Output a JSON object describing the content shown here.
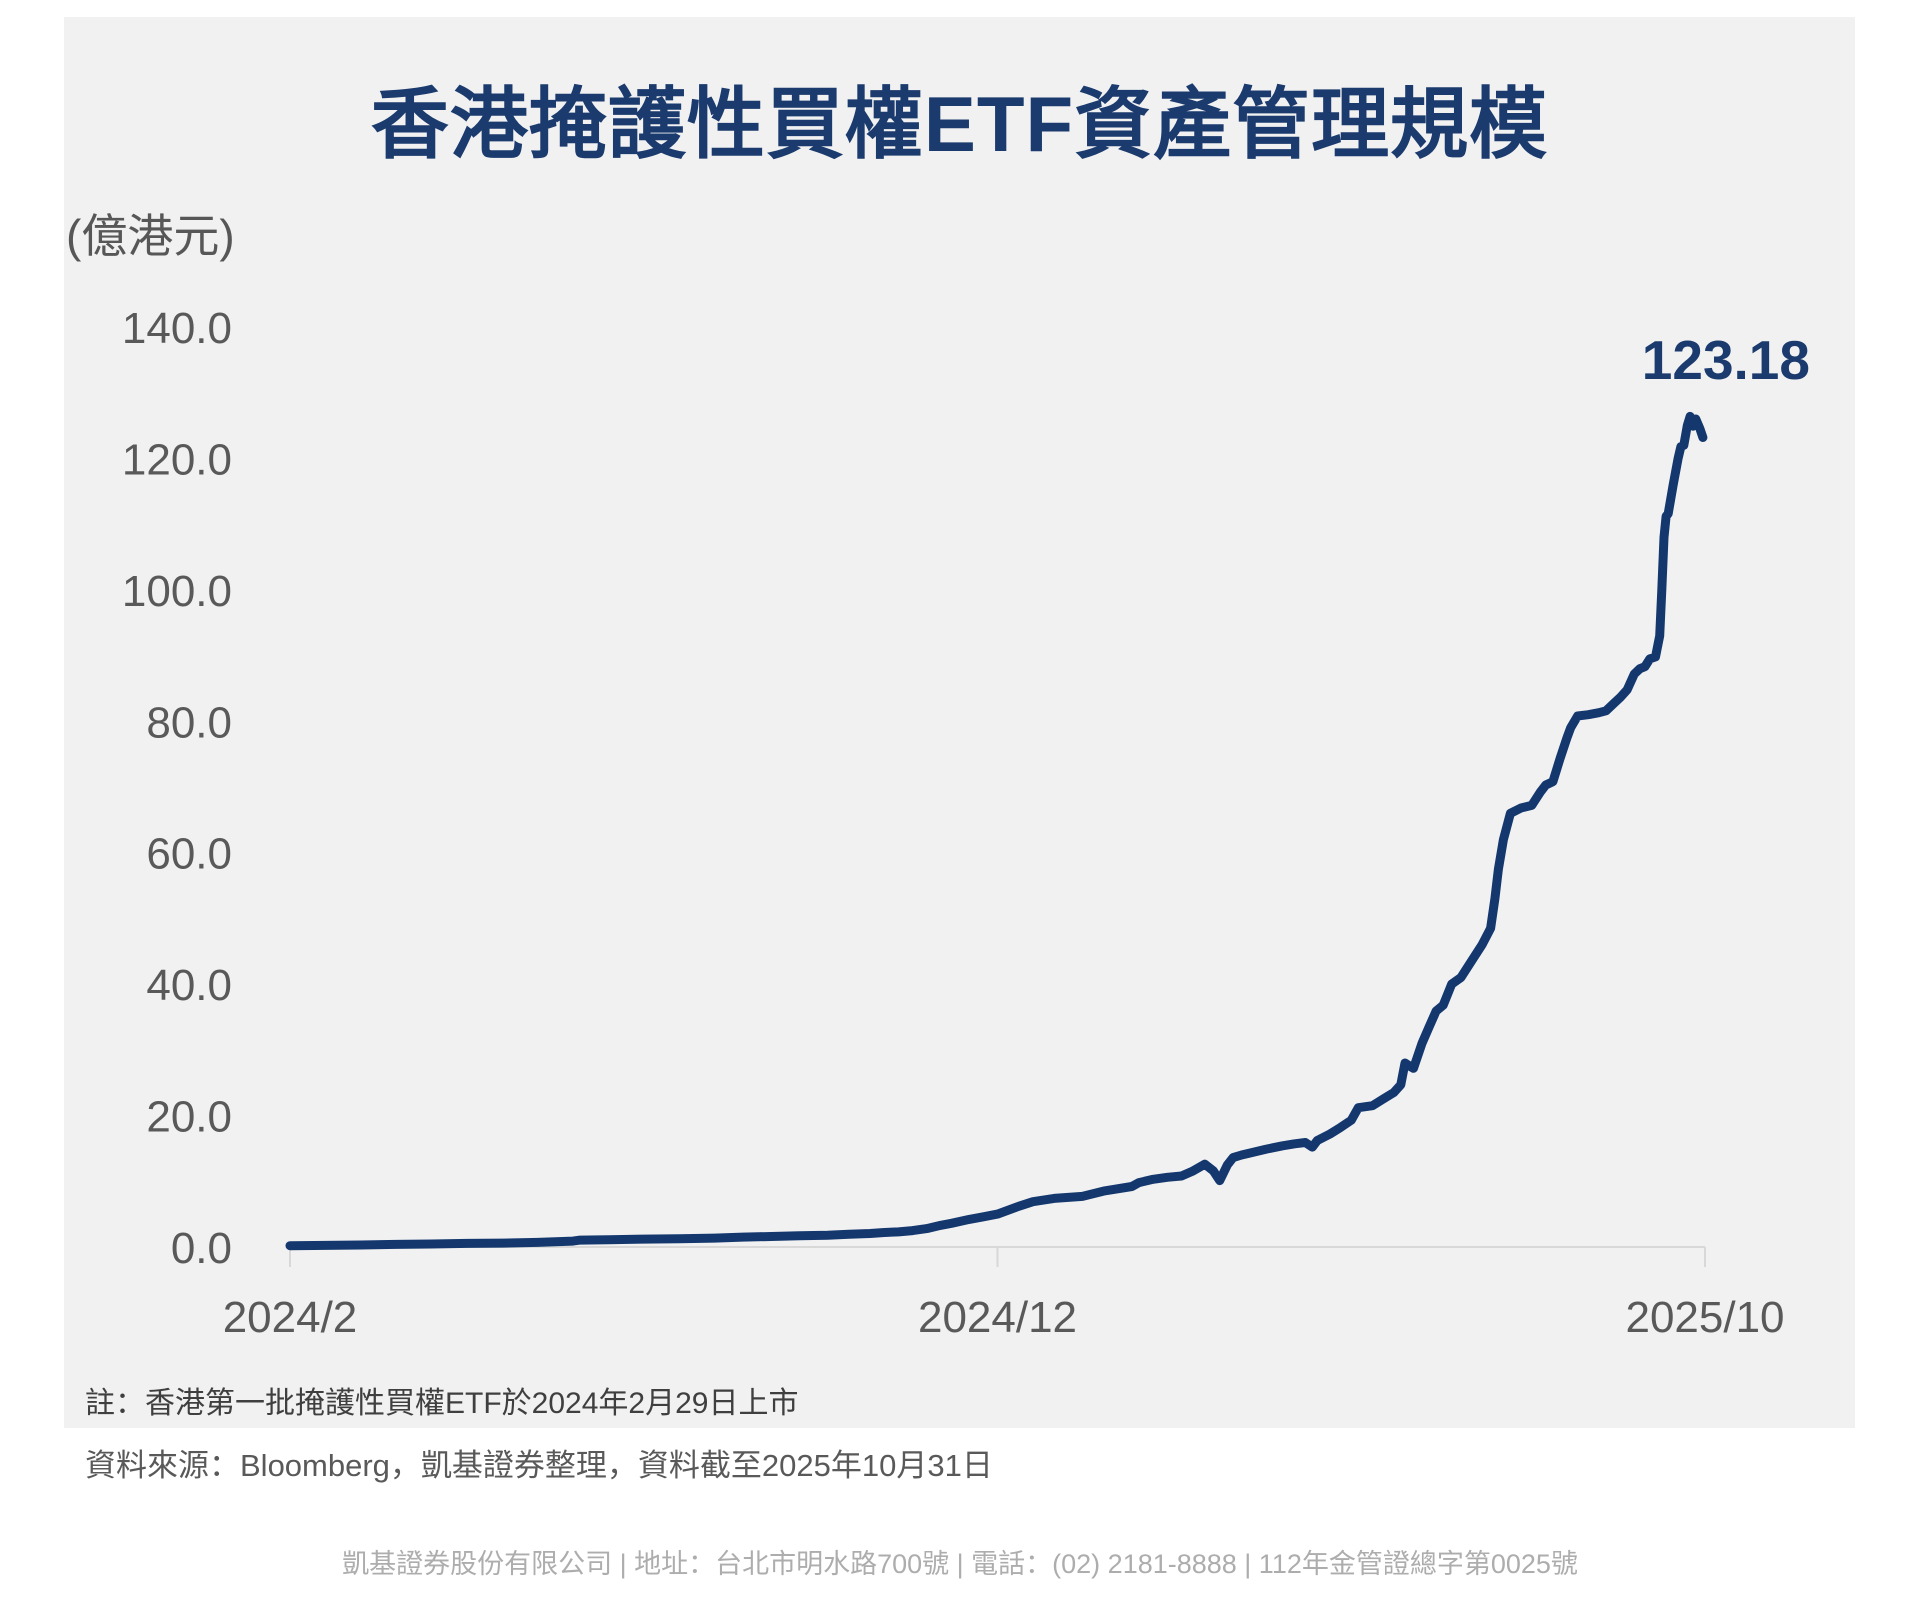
{
  "page": {
    "title": "香港掩護性買權ETF資產管理規模",
    "unit_label": "(億港元)",
    "peak_label": "123.18",
    "note": "註：香港第一批掩護性買權ETF於2024年2月29日上市",
    "source": "資料來源：Bloomberg，凱基證券整理，資料截至2025年10月31日",
    "footer": "凱基證券股份有限公司 | 地址：台北市明水路700號 | 電話：(02) 2181-8888 | 112年金管證總字第0025號"
  },
  "colors": {
    "navy": "#1b3a6d",
    "line": "#14386e",
    "card_bg": "#f1f1f2",
    "axis": "#d8d8d8",
    "tick_text": "#595959"
  },
  "chart_data": {
    "type": "line",
    "title": "香港掩護性買權ETF資產管理規模",
    "unit": "億港元",
    "ylabel": "(億港元)",
    "ylim": [
      0,
      140
    ],
    "ytick_step": 20,
    "ytick_labels": [
      "0.0",
      "20.0",
      "40.0",
      "60.0",
      "80.0",
      "100.0",
      "120.0",
      "140.0"
    ],
    "xticks": [
      {
        "label": "2024/2",
        "t": 0
      },
      {
        "label": "2024/12",
        "t": 10
      },
      {
        "label": "2025/10",
        "t": 20
      }
    ],
    "x_unit": "months since 2024/02/29",
    "x_range": [
      0,
      20
    ],
    "grid": false,
    "legend": "none",
    "last_value": 123.18,
    "last_value_label": "123.18",
    "annotations": [
      "123.18 at 2025/10/31"
    ],
    "series": [
      {
        "name": "香港掩護性買權ETF資產管理規模",
        "points": [
          [
            0,
            0.2
          ],
          [
            0.5,
            0.25
          ],
          [
            1,
            0.3
          ],
          [
            1.5,
            0.4
          ],
          [
            2,
            0.45
          ],
          [
            2.5,
            0.55
          ],
          [
            3,
            0.6
          ],
          [
            3.5,
            0.7
          ],
          [
            4,
            0.9
          ],
          [
            4.1,
            1.05
          ],
          [
            4.5,
            1.1
          ],
          [
            5,
            1.2
          ],
          [
            5.5,
            1.25
          ],
          [
            6,
            1.35
          ],
          [
            6.4,
            1.5
          ],
          [
            6.8,
            1.6
          ],
          [
            7.2,
            1.7
          ],
          [
            7.6,
            1.8
          ],
          [
            7.9,
            1.95
          ],
          [
            8.2,
            2.05
          ],
          [
            8.4,
            2.2
          ],
          [
            8.6,
            2.3
          ],
          [
            8.8,
            2.5
          ],
          [
            9,
            2.8
          ],
          [
            9.2,
            3.3
          ],
          [
            9.35,
            3.6
          ],
          [
            9.6,
            4.2
          ],
          [
            9.8,
            4.6
          ],
          [
            10,
            5
          ],
          [
            10.3,
            6.2
          ],
          [
            10.5,
            6.9
          ],
          [
            10.8,
            7.4
          ],
          [
            11.2,
            7.7
          ],
          [
            11.5,
            8.5
          ],
          [
            11.9,
            9.2
          ],
          [
            12,
            9.8
          ],
          [
            12.2,
            10.3
          ],
          [
            12.4,
            10.6
          ],
          [
            12.6,
            10.8
          ],
          [
            12.75,
            11.5
          ],
          [
            12.93,
            12.6
          ],
          [
            13.05,
            11.6
          ],
          [
            13.14,
            10.1
          ],
          [
            13.25,
            12.5
          ],
          [
            13.33,
            13.6
          ],
          [
            13.45,
            14
          ],
          [
            13.57,
            14.3
          ],
          [
            13.8,
            14.9
          ],
          [
            14.03,
            15.4
          ],
          [
            14.2,
            15.7
          ],
          [
            14.35,
            15.9
          ],
          [
            14.45,
            15.2
          ],
          [
            14.52,
            16.2
          ],
          [
            14.7,
            17.2
          ],
          [
            14.85,
            18.2
          ],
          [
            15,
            19.3
          ],
          [
            15.1,
            21.2
          ],
          [
            15.3,
            21.5
          ],
          [
            15.45,
            22.5
          ],
          [
            15.6,
            23.5
          ],
          [
            15.7,
            24.7
          ],
          [
            15.76,
            28
          ],
          [
            15.83,
            27.5
          ],
          [
            15.88,
            27.2
          ],
          [
            16,
            31
          ],
          [
            16.1,
            33.5
          ],
          [
            16.2,
            35.9
          ],
          [
            16.3,
            36.8
          ],
          [
            16.42,
            40
          ],
          [
            16.55,
            41
          ],
          [
            16.7,
            43.5
          ],
          [
            16.85,
            46
          ],
          [
            16.97,
            48.5
          ],
          [
            17.03,
            53
          ],
          [
            17.08,
            57.5
          ],
          [
            17.15,
            62
          ],
          [
            17.25,
            66
          ],
          [
            17.4,
            66.8
          ],
          [
            17.55,
            67.2
          ],
          [
            17.67,
            69.2
          ],
          [
            17.75,
            70.3
          ],
          [
            17.85,
            70.8
          ],
          [
            17.95,
            74.3
          ],
          [
            18.05,
            77.5
          ],
          [
            18.1,
            79
          ],
          [
            18.2,
            80.8
          ],
          [
            18.35,
            81
          ],
          [
            18.5,
            81.3
          ],
          [
            18.6,
            81.6
          ],
          [
            18.7,
            82.6
          ],
          [
            18.8,
            83.6
          ],
          [
            18.9,
            84.8
          ],
          [
            19,
            87.2
          ],
          [
            19.08,
            88
          ],
          [
            19.15,
            88.3
          ],
          [
            19.22,
            89.5
          ],
          [
            19.3,
            89.8
          ],
          [
            19.36,
            93
          ],
          [
            19.39,
            100
          ],
          [
            19.42,
            108
          ],
          [
            19.45,
            111.2
          ],
          [
            19.48,
            111.6
          ],
          [
            19.55,
            116
          ],
          [
            19.62,
            120
          ],
          [
            19.66,
            121.8
          ],
          [
            19.7,
            122
          ],
          [
            19.75,
            125
          ],
          [
            19.79,
            126.4
          ],
          [
            19.83,
            124.9
          ],
          [
            19.87,
            126
          ],
          [
            19.93,
            124.5
          ],
          [
            19.97,
            123.18
          ]
        ]
      }
    ]
  }
}
